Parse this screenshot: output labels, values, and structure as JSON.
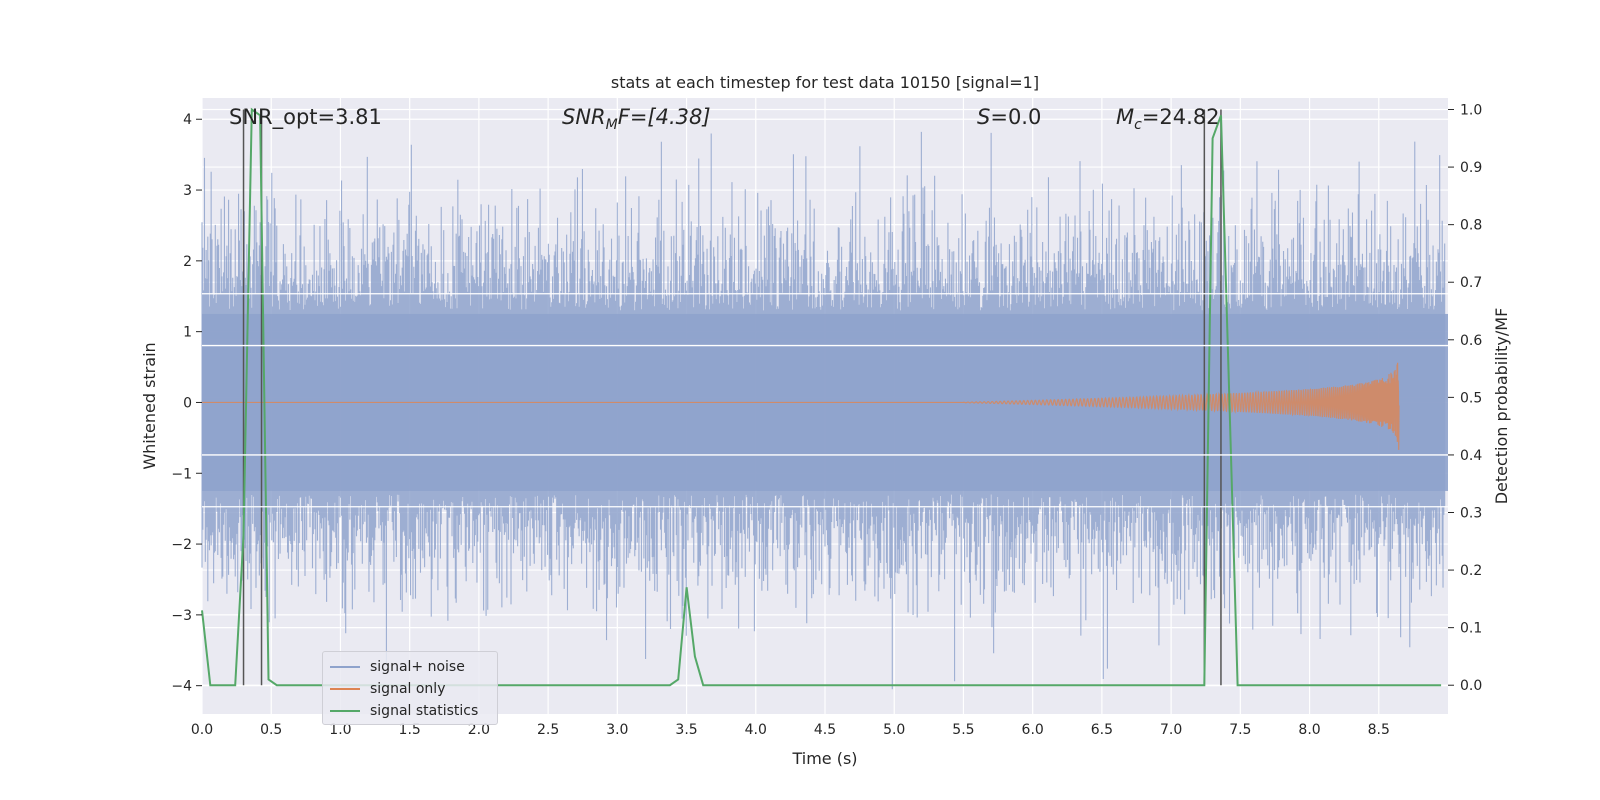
{
  "chart_data": {
    "type": "line",
    "title": "stats at each timestep for test data 10150 [signal=1]",
    "xlabel": "Time (s)",
    "ylabel_left": "Whitened strain",
    "ylabel_right": "Detection probability/MF",
    "xlim": [
      0.0,
      9.0
    ],
    "ylim_left": [
      -4.4,
      4.3
    ],
    "ylim_right": [
      -0.05,
      1.02
    ],
    "xticks": [
      "0.0",
      "0.5",
      "1.0",
      "1.5",
      "2.0",
      "2.5",
      "3.0",
      "3.5",
      "4.0",
      "4.5",
      "5.0",
      "5.5",
      "6.0",
      "6.5",
      "7.0",
      "7.5",
      "8.0",
      "8.5"
    ],
    "yticks_left": [
      "−4",
      "−3",
      "−2",
      "−1",
      "0",
      "1",
      "2",
      "3",
      "4"
    ],
    "yticks_right": [
      "0.0",
      "0.1",
      "0.2",
      "0.3",
      "0.4",
      "0.5",
      "0.6",
      "0.7",
      "0.8",
      "0.9",
      "1.0"
    ],
    "grid": true,
    "legend_position": "lower-left",
    "annotations": {
      "snr_opt": "SNR_opt=3.81",
      "snr_mf_main": "SNR",
      "snr_mf_sub": "M",
      "snr_mf_rest": "F=[4.38]",
      "s_main": "S",
      "s_rest": "=0.0",
      "mc_main": "M",
      "mc_sub": "c",
      "mc_rest": "=24.82"
    },
    "series": [
      {
        "name": "signal+ noise",
        "color": "#8fa3cc",
        "description_kind": "noise"
      },
      {
        "name": "signal only",
        "color": "#dd8452",
        "chirp_start": 5.5,
        "chirp_end": 8.65,
        "chirp_peak_amp": 0.85
      },
      {
        "name": "signal statistics",
        "color": "#55a868",
        "x": [
          0.0,
          0.06,
          0.12,
          0.18,
          0.24,
          0.3,
          0.36,
          0.42,
          0.48,
          0.54,
          0.6,
          0.66,
          1.0,
          2.0,
          3.0,
          3.38,
          3.44,
          3.5,
          3.56,
          3.62,
          3.7,
          4.0,
          5.0,
          6.0,
          7.0,
          7.24,
          7.3,
          7.36,
          7.42,
          7.48,
          7.54,
          7.6,
          8.0,
          8.5,
          8.95
        ],
        "y": [
          0.13,
          0.0,
          0.0,
          0.0,
          0.0,
          0.26,
          1.0,
          0.99,
          0.01,
          0.0,
          0.0,
          0.0,
          0.0,
          0.0,
          0.0,
          0.0,
          0.01,
          0.17,
          0.05,
          0.0,
          0.0,
          0.0,
          0.0,
          0.0,
          0.0,
          0.0,
          0.95,
          0.99,
          0.5,
          0.0,
          0.0,
          0.0,
          0.0,
          0.0,
          0.0
        ]
      }
    ],
    "vlines": [
      0.3,
      0.43,
      7.24,
      7.36
    ],
    "hlines_right": [
      0.68,
      0.59,
      0.4,
      0.31
    ]
  }
}
